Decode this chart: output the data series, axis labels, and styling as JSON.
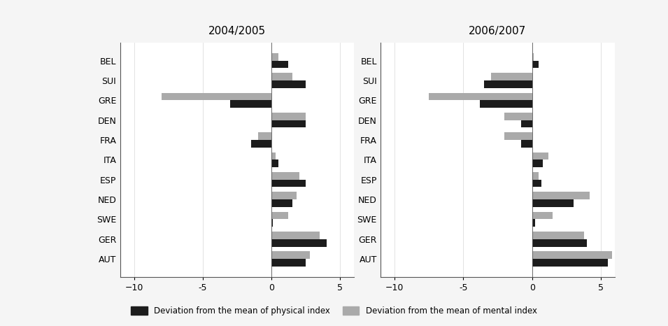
{
  "countries": [
    "BEL",
    "SUI",
    "GRE",
    "DEN",
    "FRA",
    "ITA",
    "ESP",
    "NED",
    "SWE",
    "GER",
    "AUT"
  ],
  "period1": {
    "title": "2004/2005",
    "physical": [
      1.2,
      2.5,
      -3.0,
      2.5,
      -1.5,
      0.5,
      2.5,
      1.5,
      0.1,
      4.0,
      2.5
    ],
    "mental": [
      0.5,
      1.5,
      -8.0,
      2.5,
      -1.0,
      0.3,
      2.0,
      1.8,
      1.2,
      3.5,
      2.8
    ]
  },
  "period2": {
    "title": "2006/2007",
    "physical": [
      0.5,
      -3.5,
      -3.8,
      -0.8,
      -0.8,
      0.8,
      0.7,
      3.0,
      0.2,
      4.0,
      5.5
    ],
    "mental": [
      0.1,
      -3.0,
      -7.5,
      -2.0,
      -2.0,
      1.2,
      0.5,
      4.2,
      1.5,
      3.8,
      5.8
    ]
  },
  "xlim": [
    -11,
    6
  ],
  "xticks": [
    -10,
    -5,
    0,
    5
  ],
  "bar_color_physical": "#1c1c1c",
  "bar_color_mental": "#aaaaaa",
  "plot_bg": "#ffffff",
  "outer_bg": "#e0e0e0",
  "fig_bg": "#f5f5f5",
  "legend_physical": "Deviation from the mean of physical index",
  "legend_mental": "Deviation from the mean of mental index",
  "bar_height": 0.38
}
